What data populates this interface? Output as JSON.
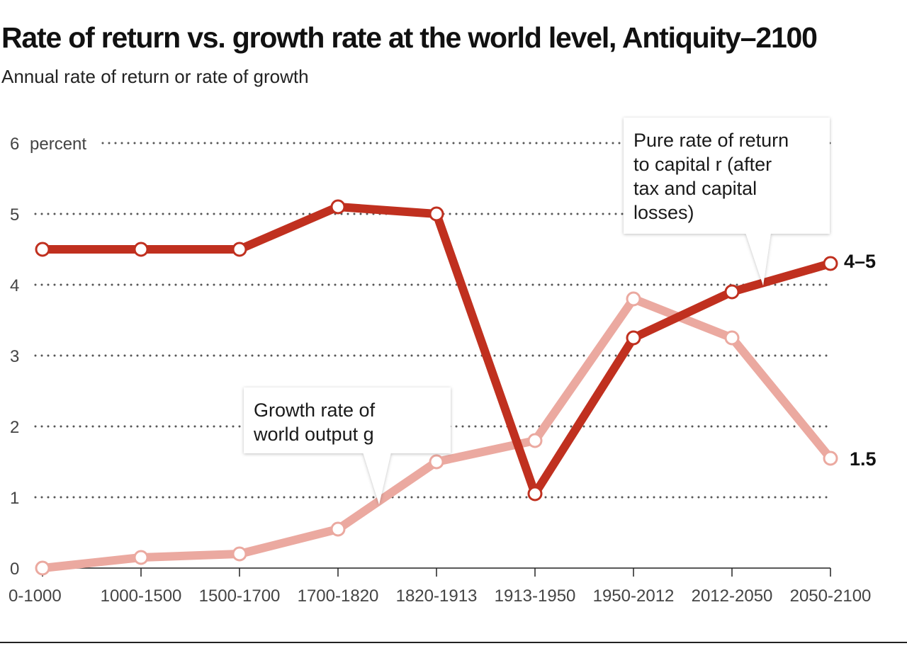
{
  "chart_data": {
    "type": "line",
    "title": "Rate of return vs. growth rate at the world level, Antiquity–2100",
    "subtitle": "Annual rate of return or rate of growth",
    "categories": [
      "0-1000",
      "1000-1500",
      "1500-1700",
      "1700-1820",
      "1820-1913",
      "1913-1950",
      "1950-2012",
      "2012-2050",
      "2050-2100"
    ],
    "ylim": [
      0,
      6
    ],
    "y_ticks": [
      0,
      1,
      2,
      3,
      4,
      5,
      6
    ],
    "y_unit_label": "percent",
    "grid": "dotted horizontal",
    "series": [
      {
        "key": "r",
        "color": "#c0301f",
        "values": [
          4.5,
          4.5,
          4.5,
          5.1,
          5.0,
          1.05,
          3.25,
          3.9,
          4.3
        ],
        "end_label": "4–5",
        "annotation_lines": [
          "Pure rate of return",
          "to capital r (after",
          "tax and capital",
          "losses)"
        ]
      },
      {
        "key": "g",
        "color": "#eba9a0",
        "values": [
          0.0,
          0.15,
          0.2,
          0.55,
          1.5,
          1.8,
          3.8,
          3.25,
          1.55
        ],
        "end_label": "1.5",
        "annotation_lines": [
          "Growth rate of",
          "world output g"
        ]
      }
    ]
  }
}
